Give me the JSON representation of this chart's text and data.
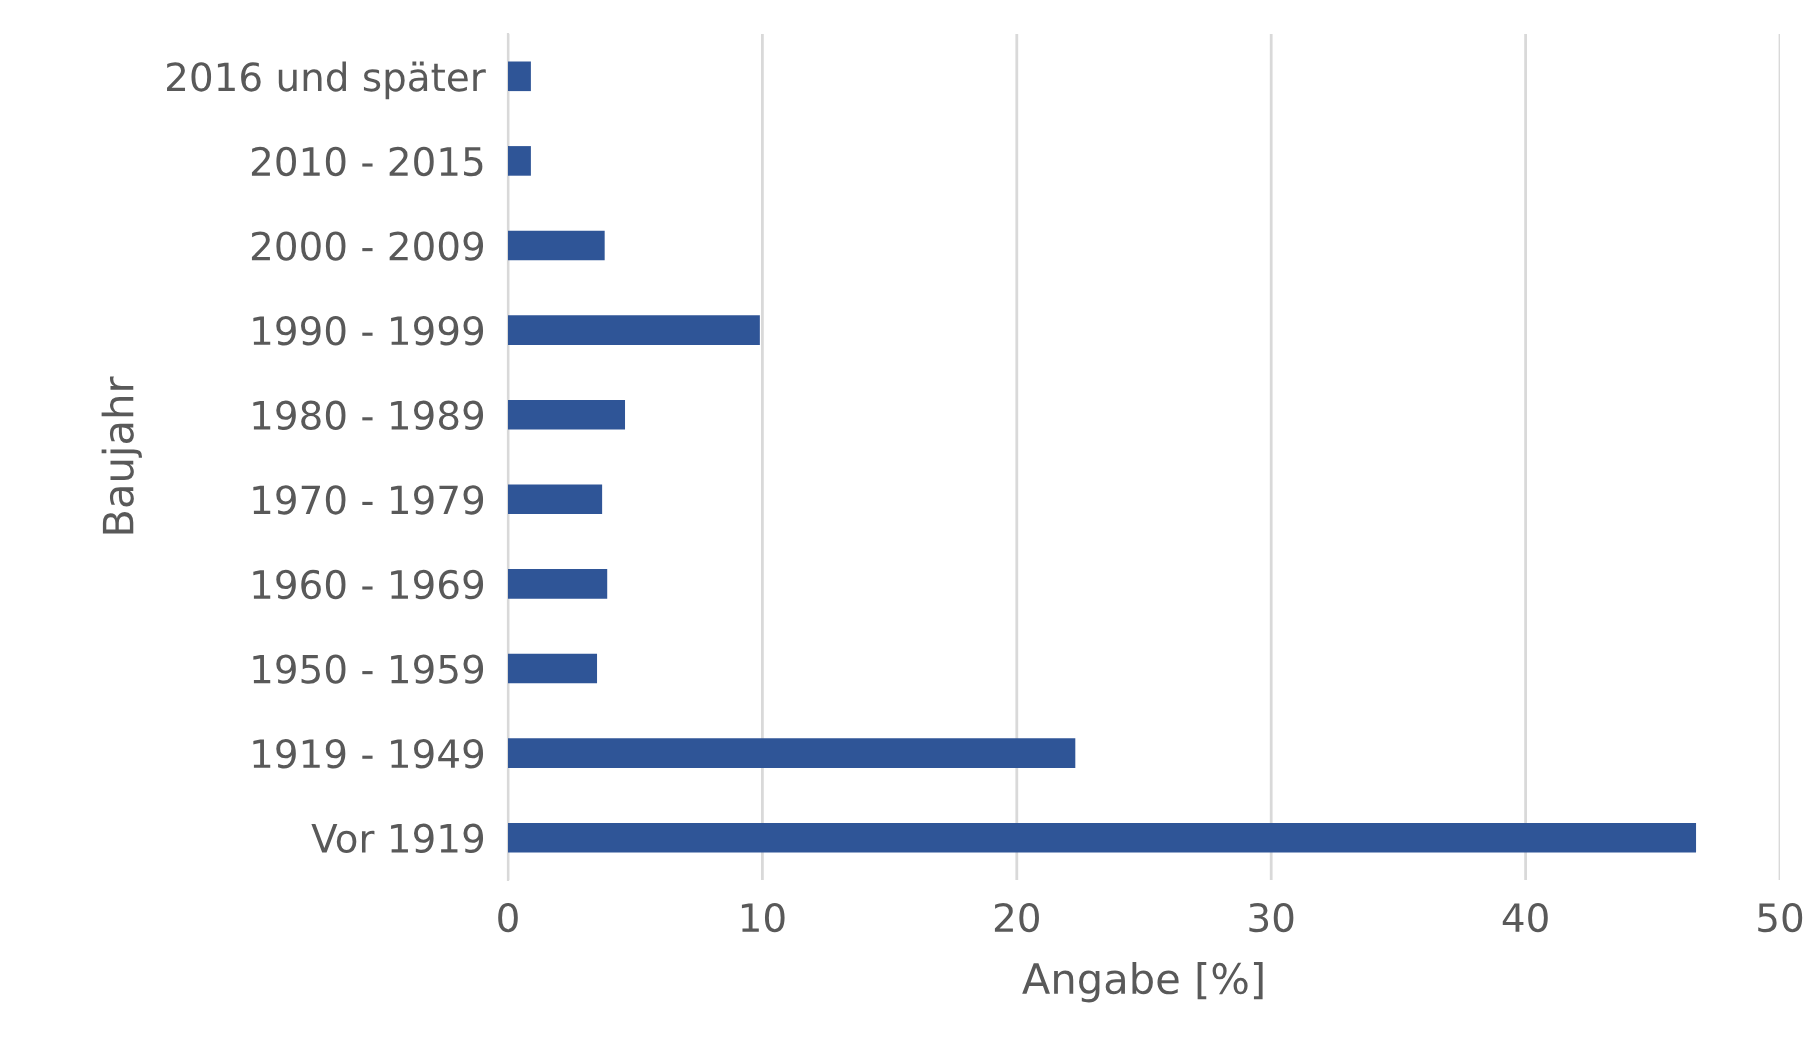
{
  "chart_data": {
    "type": "bar",
    "orientation": "horizontal",
    "xlabel": "Angabe [%]",
    "ylabel": "Baujahr",
    "categories": [
      "2016 und später",
      "2010 - 2015",
      "2000 - 2009",
      "1990 - 1999",
      "1980 - 1989",
      "1970 - 1979",
      "1960 - 1969",
      "1950 - 1959",
      "1919 - 1949",
      "Vor 1919"
    ],
    "values": [
      0.9,
      0.9,
      3.8,
      9.9,
      4.6,
      3.7,
      3.9,
      3.5,
      22.3,
      46.7
    ],
    "color": "#2f5597",
    "xlim": [
      0,
      50
    ],
    "xticks": [
      0,
      10,
      20,
      30,
      40,
      50
    ],
    "grid": "x",
    "legend": false
  }
}
